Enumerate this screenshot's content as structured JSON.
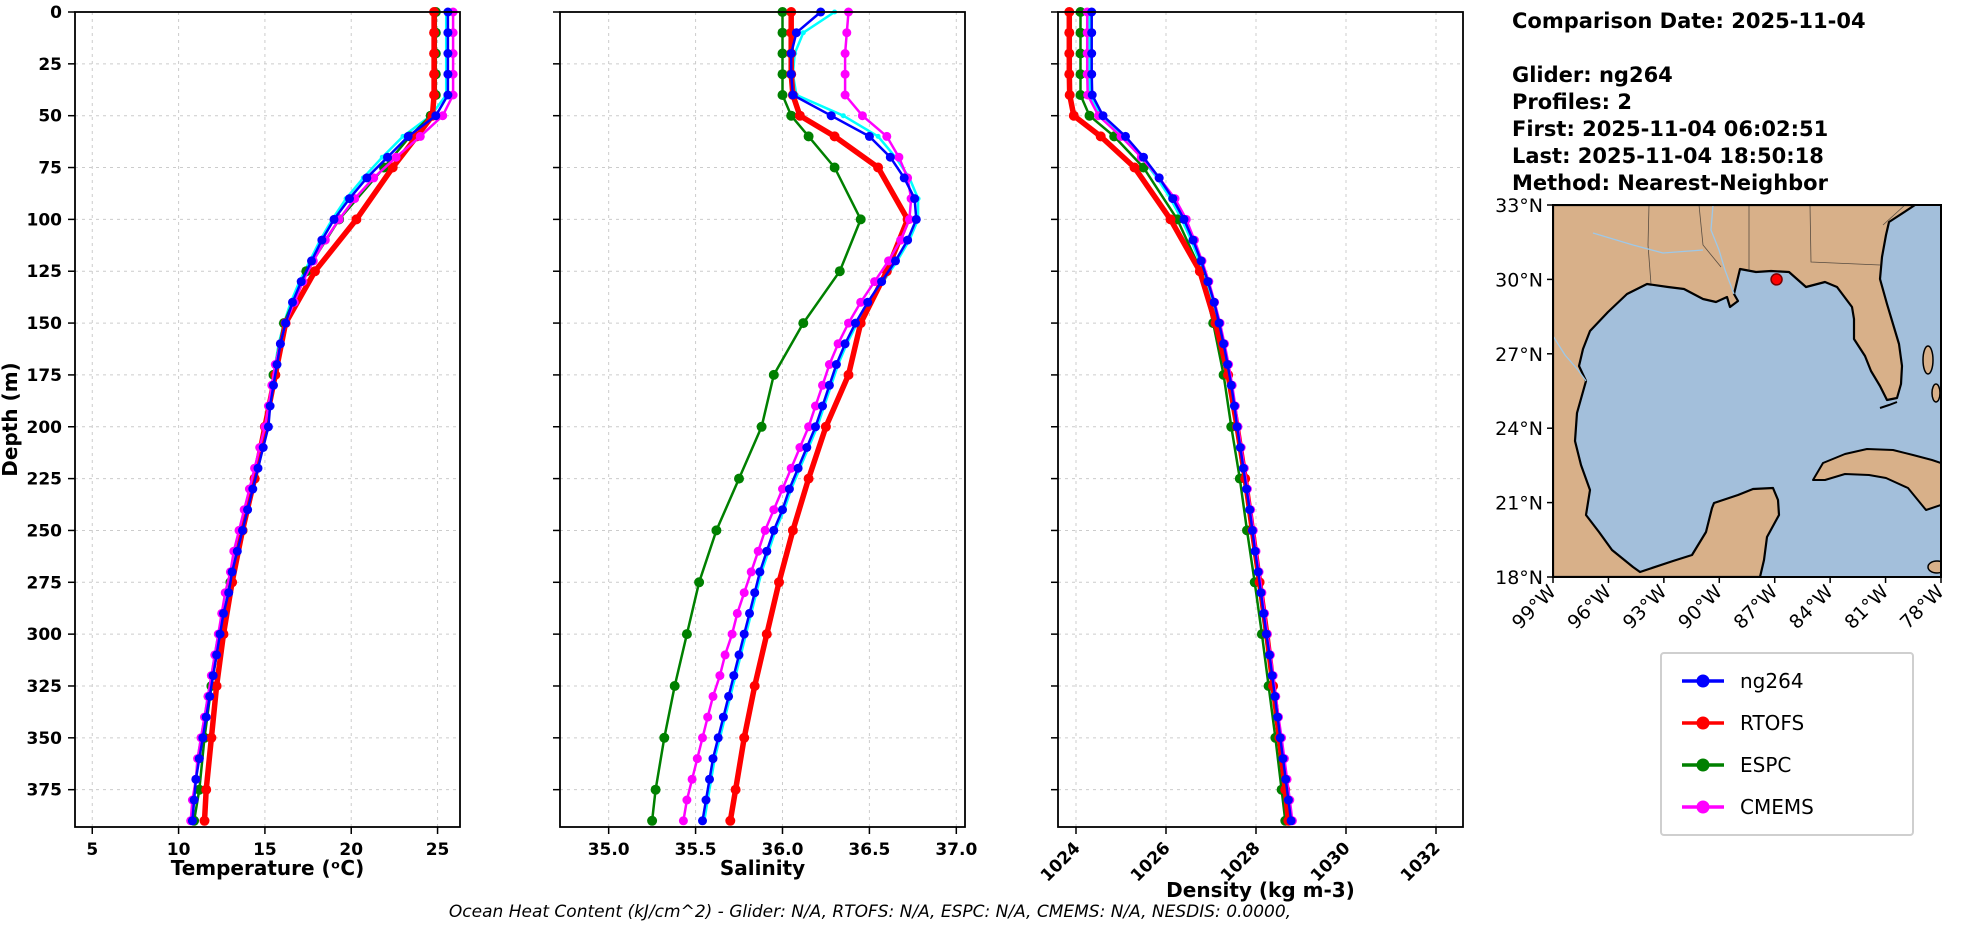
{
  "info": {
    "comparison_date": "Comparison Date: 2025-11-04",
    "glider": "Glider: ng264",
    "profiles": "Profiles: 2",
    "first": "First: 2025-11-04 06:02:51",
    "last": "Last: 2025-11-04 18:50:18",
    "method": "Method: Nearest-Neighbor"
  },
  "caption": "Ocean Heat Content (kJ/cm^2) - Glider: N/A,  RTOFS: N/A,  ESPC: N/A,  CMEMS: N/A,  NESDIS: 0.0000,",
  "legend": {
    "items": [
      {
        "label": "ng264",
        "color": "#0000ff"
      },
      {
        "label": "RTOFS",
        "color": "#ff0000"
      },
      {
        "label": "ESPC",
        "color": "#008000"
      },
      {
        "label": "CMEMS",
        "color": "#ff00ff"
      }
    ]
  },
  "map": {
    "lat_labels": [
      "33°N",
      "30°N",
      "27°N",
      "24°N",
      "21°N",
      "18°N"
    ],
    "lon_labels": [
      "99°W",
      "96°W",
      "93°W",
      "90°W",
      "87°W",
      "84°W",
      "81°W",
      "78°W"
    ],
    "land_color": "#d8b089",
    "water_color": "#a3bfdb",
    "marker": {
      "lon": -86.9,
      "lat": 30.0,
      "color": "#ff0000",
      "edge_color": "#7a0000"
    }
  },
  "depth_axis": {
    "label": "Depth (m)",
    "ticks": [
      0,
      25,
      50,
      75,
      100,
      125,
      150,
      175,
      200,
      225,
      250,
      275,
      300,
      325,
      350,
      375
    ],
    "lim": [
      0,
      393
    ]
  },
  "depths": {
    "glider": [
      0,
      10,
      20,
      30,
      40,
      50,
      60,
      70,
      80,
      90,
      100,
      110,
      120,
      130,
      140,
      150,
      160,
      170,
      180,
      190,
      200,
      210,
      220,
      230,
      240,
      250,
      260,
      270,
      280,
      290,
      300,
      310,
      320,
      330,
      340,
      350,
      360,
      370,
      380,
      390
    ],
    "model": [
      0,
      10,
      20,
      30,
      40,
      50,
      60,
      75,
      100,
      125,
      150,
      175,
      200,
      225,
      250,
      275,
      300,
      325,
      350,
      375,
      390
    ]
  },
  "chart_data": [
    {
      "type": "line",
      "xlabel": "Temperature (ᵒC)",
      "xlim": [
        4.0,
        26.3
      ],
      "xticks": [
        5,
        10,
        15,
        20,
        25
      ],
      "xtick_labels": [
        "5",
        "10",
        "15",
        "20",
        "25"
      ],
      "rotate_xtick_labels": false,
      "series": [
        {
          "name": "ng264-2",
          "color": "#00ffff",
          "line_width": 2.5,
          "marker_radius": 2.5,
          "depth_key": "glider",
          "values": [
            25.5,
            25.5,
            25.5,
            25.5,
            25.5,
            24.6,
            23.0,
            21.8,
            20.7,
            19.7,
            18.9,
            18.2,
            17.6,
            17.0,
            16.5,
            16.1,
            15.8,
            15.6,
            15.4,
            15.3,
            15.1,
            14.8,
            14.5,
            14.2,
            13.9,
            13.6,
            13.3,
            13.0,
            12.8,
            12.6,
            12.3,
            12.1,
            11.9,
            11.7,
            11.5,
            11.3,
            11.1,
            11.0,
            10.9,
            10.8
          ]
        },
        {
          "name": "ESPC",
          "color": "#008000",
          "line_width": 2.5,
          "marker_radius": 5,
          "depth_key": "model",
          "values": [
            24.9,
            24.9,
            24.9,
            24.9,
            24.9,
            24.6,
            23.4,
            21.9,
            19.3,
            17.4,
            16.1,
            15.5,
            15.1,
            14.4,
            13.7,
            13.0,
            12.4,
            11.9,
            11.5,
            11.2,
            10.9
          ]
        },
        {
          "name": "RTOFS",
          "color": "#ff0000",
          "line_width": 5.5,
          "marker_radius": 5,
          "depth_key": "model",
          "values": [
            24.8,
            24.8,
            24.8,
            24.8,
            24.8,
            24.7,
            23.8,
            22.4,
            20.3,
            17.9,
            16.2,
            15.6,
            15.0,
            14.4,
            13.7,
            13.1,
            12.6,
            12.2,
            11.9,
            11.6,
            11.5
          ]
        },
        {
          "name": "CMEMS",
          "color": "#ff00ff",
          "line_width": 2.5,
          "marker_radius": 4.5,
          "depth_key": "glider",
          "values": [
            25.9,
            25.9,
            25.9,
            25.9,
            25.9,
            25.3,
            24.0,
            22.6,
            21.3,
            20.2,
            19.3,
            18.5,
            17.8,
            17.2,
            16.7,
            16.2,
            15.9,
            15.6,
            15.4,
            15.2,
            15.0,
            14.7,
            14.4,
            14.1,
            13.8,
            13.5,
            13.2,
            13.0,
            12.7,
            12.5,
            12.3,
            12.1,
            11.9,
            11.7,
            11.5,
            11.3,
            11.1,
            11.0,
            10.8,
            10.7
          ]
        },
        {
          "name": "ng264",
          "color": "#0000ff",
          "line_width": 2.5,
          "marker_radius": 4.5,
          "depth_key": "glider",
          "values": [
            25.6,
            25.6,
            25.6,
            25.6,
            25.6,
            24.9,
            23.3,
            22.1,
            20.9,
            19.9,
            19.0,
            18.3,
            17.7,
            17.1,
            16.6,
            16.2,
            15.9,
            15.7,
            15.5,
            15.3,
            15.2,
            14.9,
            14.6,
            14.3,
            14.0,
            13.7,
            13.4,
            13.1,
            12.9,
            12.6,
            12.4,
            12.2,
            12.0,
            11.8,
            11.6,
            11.4,
            11.2,
            11.0,
            10.9,
            10.8
          ]
        }
      ]
    },
    {
      "type": "line",
      "xlabel": "Salinity",
      "xlim": [
        34.72,
        37.05
      ],
      "xticks": [
        35.0,
        35.5,
        36.0,
        36.5,
        37.0
      ],
      "xtick_labels": [
        "35.0",
        "35.5",
        "36.0",
        "36.5",
        "37.0"
      ],
      "rotate_xtick_labels": false,
      "series": [
        {
          "name": "ng264-2",
          "color": "#00ffff",
          "line_width": 2.5,
          "marker_radius": 2.5,
          "depth_key": "glider",
          "values": [
            36.3,
            36.12,
            36.07,
            36.06,
            36.08,
            36.35,
            36.55,
            36.65,
            36.73,
            36.78,
            36.78,
            36.73,
            36.66,
            36.58,
            36.5,
            36.43,
            36.37,
            36.32,
            36.28,
            36.24,
            36.2,
            36.15,
            36.1,
            36.05,
            36.01,
            35.96,
            35.92,
            35.88,
            35.85,
            35.82,
            35.79,
            35.76,
            35.73,
            35.7,
            35.67,
            35.64,
            35.61,
            35.59,
            35.57,
            35.55
          ]
        },
        {
          "name": "ESPC",
          "color": "#008000",
          "line_width": 2.5,
          "marker_radius": 5,
          "depth_key": "model",
          "values": [
            36.0,
            36.0,
            36.0,
            36.0,
            36.0,
            36.05,
            36.15,
            36.3,
            36.45,
            36.33,
            36.12,
            35.95,
            35.88,
            35.75,
            35.62,
            35.52,
            35.45,
            35.38,
            35.32,
            35.27,
            35.25
          ]
        },
        {
          "name": "RTOFS",
          "color": "#ff0000",
          "line_width": 5.5,
          "marker_radius": 5,
          "depth_key": "model",
          "values": [
            36.05,
            36.05,
            36.05,
            36.05,
            36.06,
            36.1,
            36.3,
            36.55,
            36.72,
            36.6,
            36.45,
            36.38,
            36.25,
            36.15,
            36.06,
            35.98,
            35.91,
            35.84,
            35.78,
            35.73,
            35.7
          ]
        },
        {
          "name": "CMEMS",
          "color": "#ff00ff",
          "line_width": 2.5,
          "marker_radius": 4.5,
          "depth_key": "glider",
          "values": [
            36.38,
            36.37,
            36.36,
            36.36,
            36.36,
            36.46,
            36.6,
            36.67,
            36.72,
            36.74,
            36.73,
            36.68,
            36.61,
            36.53,
            36.45,
            36.38,
            36.32,
            36.27,
            36.23,
            36.19,
            36.15,
            36.1,
            36.05,
            36.0,
            35.95,
            35.9,
            35.86,
            35.82,
            35.78,
            35.74,
            35.71,
            35.67,
            35.64,
            35.6,
            35.57,
            35.54,
            35.51,
            35.48,
            35.45,
            35.43
          ]
        },
        {
          "name": "ng264",
          "color": "#0000ff",
          "line_width": 2.5,
          "marker_radius": 4.5,
          "depth_key": "glider",
          "values": [
            36.22,
            36.08,
            36.05,
            36.05,
            36.06,
            36.28,
            36.5,
            36.62,
            36.7,
            36.76,
            36.77,
            36.72,
            36.65,
            36.57,
            36.49,
            36.42,
            36.36,
            36.31,
            36.27,
            36.23,
            36.19,
            36.14,
            36.09,
            36.04,
            36.0,
            35.95,
            35.91,
            35.87,
            35.84,
            35.81,
            35.78,
            35.75,
            35.72,
            35.69,
            35.66,
            35.63,
            35.6,
            35.58,
            35.56,
            35.54
          ]
        }
      ]
    },
    {
      "type": "line",
      "xlabel": "Density (kg m-3)",
      "xlim": [
        1023.6,
        1032.6
      ],
      "xticks": [
        1024,
        1026,
        1028,
        1030,
        1032
      ],
      "xtick_labels": [
        "1024",
        "1026",
        "1028",
        "1030",
        "1032"
      ],
      "rotate_xtick_labels": true,
      "series": [
        {
          "name": "ng264-2",
          "color": "#00ffff",
          "line_width": 2.5,
          "marker_radius": 2.5,
          "depth_key": "glider",
          "values": [
            1024.3,
            1024.3,
            1024.3,
            1024.3,
            1024.31,
            1024.55,
            1025.05,
            1025.45,
            1025.8,
            1026.1,
            1026.35,
            1026.56,
            1026.74,
            1026.9,
            1027.04,
            1027.15,
            1027.25,
            1027.34,
            1027.42,
            1027.49,
            1027.55,
            1027.62,
            1027.69,
            1027.76,
            1027.83,
            1027.89,
            1027.95,
            1028.02,
            1028.08,
            1028.14,
            1028.2,
            1028.27,
            1028.33,
            1028.39,
            1028.45,
            1028.51,
            1028.57,
            1028.63,
            1028.69,
            1028.75
          ]
        },
        {
          "name": "ESPC",
          "color": "#008000",
          "line_width": 2.5,
          "marker_radius": 5,
          "depth_key": "model",
          "values": [
            1024.1,
            1024.1,
            1024.1,
            1024.1,
            1024.1,
            1024.3,
            1024.85,
            1025.5,
            1026.25,
            1026.78,
            1027.05,
            1027.28,
            1027.45,
            1027.64,
            1027.8,
            1027.97,
            1028.13,
            1028.28,
            1028.43,
            1028.57,
            1028.65
          ]
        },
        {
          "name": "RTOFS",
          "color": "#ff0000",
          "line_width": 5.5,
          "marker_radius": 5,
          "depth_key": "model",
          "values": [
            1023.85,
            1023.85,
            1023.85,
            1023.85,
            1023.86,
            1023.95,
            1024.55,
            1025.3,
            1026.1,
            1026.75,
            1027.1,
            1027.38,
            1027.58,
            1027.76,
            1027.92,
            1028.08,
            1028.24,
            1028.38,
            1028.52,
            1028.65,
            1028.72
          ]
        },
        {
          "name": "CMEMS",
          "color": "#ff00ff",
          "line_width": 2.5,
          "marker_radius": 4.5,
          "depth_key": "glider",
          "values": [
            1024.25,
            1024.25,
            1024.25,
            1024.25,
            1024.26,
            1024.5,
            1025.0,
            1025.45,
            1025.85,
            1026.2,
            1026.45,
            1026.63,
            1026.8,
            1026.95,
            1027.08,
            1027.2,
            1027.3,
            1027.39,
            1027.47,
            1027.54,
            1027.6,
            1027.67,
            1027.74,
            1027.81,
            1027.88,
            1027.94,
            1028.0,
            1028.07,
            1028.13,
            1028.19,
            1028.25,
            1028.32,
            1028.38,
            1028.44,
            1028.5,
            1028.57,
            1028.63,
            1028.69,
            1028.75,
            1028.81
          ]
        },
        {
          "name": "ng264",
          "color": "#0000ff",
          "line_width": 2.5,
          "marker_radius": 4.5,
          "depth_key": "glider",
          "values": [
            1024.35,
            1024.35,
            1024.35,
            1024.35,
            1024.36,
            1024.6,
            1025.1,
            1025.5,
            1025.85,
            1026.15,
            1026.4,
            1026.6,
            1026.78,
            1026.93,
            1027.07,
            1027.18,
            1027.28,
            1027.37,
            1027.45,
            1027.52,
            1027.58,
            1027.65,
            1027.72,
            1027.79,
            1027.86,
            1027.92,
            1027.98,
            1028.05,
            1028.11,
            1028.17,
            1028.23,
            1028.3,
            1028.36,
            1028.42,
            1028.48,
            1028.54,
            1028.6,
            1028.66,
            1028.72,
            1028.78
          ]
        }
      ]
    }
  ]
}
